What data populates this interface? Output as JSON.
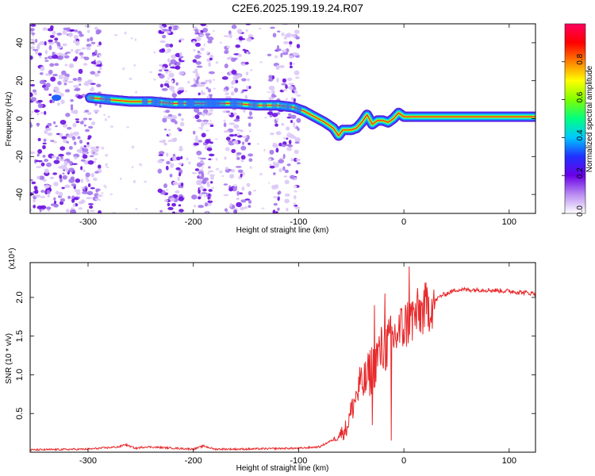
{
  "title": "C2E6.2025.199.19.24.R07",
  "chart_data": [
    {
      "type": "heatmap",
      "xlabel": "Height of straight line (km)",
      "ylabel": "Frequency (Hz)",
      "xlim": [
        -355,
        125
      ],
      "ylim": [
        -50,
        50
      ],
      "xticks": [
        -300,
        -200,
        -100,
        0,
        100
      ],
      "yticks": [
        -40,
        -20,
        0,
        20,
        40
      ],
      "colorbar": {
        "label": "Normalized spectral amplitude",
        "range": [
          0,
          1
        ],
        "ticks": [
          "0.0",
          "0.2",
          "0.4",
          "0.6",
          "0.8"
        ],
        "colors": [
          "#ffffff",
          "#b98cf0",
          "#6a00e8",
          "#2030ff",
          "#00c8ff",
          "#00ff80",
          "#80ff00",
          "#ffff00",
          "#ff8000",
          "#ff0000",
          "#ff0060"
        ]
      },
      "ridge": {
        "x": [
          -298,
          -280,
          -260,
          -240,
          -220,
          -200,
          -180,
          -160,
          -140,
          -120,
          -105,
          -95,
          -85,
          -75,
          -67,
          -62,
          -58,
          -50,
          -45,
          -40,
          -35,
          -30,
          -25,
          -20,
          -15,
          -10,
          -5,
          0,
          20,
          60,
          100,
          125
        ],
        "y": [
          11,
          10,
          9,
          9,
          8,
          8,
          8,
          8,
          7,
          7,
          6,
          4,
          1,
          -2,
          -5,
          -9,
          -6,
          -6,
          -5,
          -2,
          2,
          -3,
          -1,
          -1,
          -2,
          0,
          3,
          1,
          1,
          1,
          1,
          1
        ]
      },
      "noise_bands": [
        [
          -355,
          -288
        ],
        [
          -232,
          -210
        ],
        [
          -200,
          -182
        ],
        [
          -170,
          -145
        ],
        [
          -128,
          -100
        ]
      ]
    },
    {
      "type": "line",
      "xlabel": "Height of straight line (km)",
      "ylabel": "SNR (10 * v/v)",
      "y_multiplier_label": "(x10⁴)",
      "xlim": [
        -355,
        125
      ],
      "ylim": [
        0,
        2.45
      ],
      "xticks": [
        -300,
        -200,
        -100,
        0,
        100
      ],
      "yticks": [
        "0.5",
        "1.0",
        "1.5",
        "2.0"
      ],
      "color": "#e8282a",
      "x": [
        -355,
        -300,
        -270,
        -265,
        -255,
        -245,
        -200,
        -190,
        -180,
        -150,
        -110,
        -100,
        -80,
        -65,
        -55,
        -45,
        -35,
        -25,
        -15,
        -5,
        5,
        15,
        25,
        35,
        50,
        75,
        100,
        125
      ],
      "y": [
        0.03,
        0.04,
        0.07,
        0.1,
        0.05,
        0.07,
        0.04,
        0.08,
        0.04,
        0.04,
        0.05,
        0.05,
        0.07,
        0.18,
        0.3,
        0.75,
        0.95,
        1.25,
        1.4,
        1.55,
        1.7,
        1.8,
        1.9,
        2.02,
        2.1,
        2.1,
        2.08,
        2.05
      ],
      "spikes": [
        [
          -42,
          1.1
        ],
        [
          -28,
          1.9
        ],
        [
          -18,
          2.05
        ],
        [
          5,
          2.4
        ],
        [
          -12,
          0.15
        ],
        [
          -30,
          0.35
        ]
      ]
    }
  ]
}
